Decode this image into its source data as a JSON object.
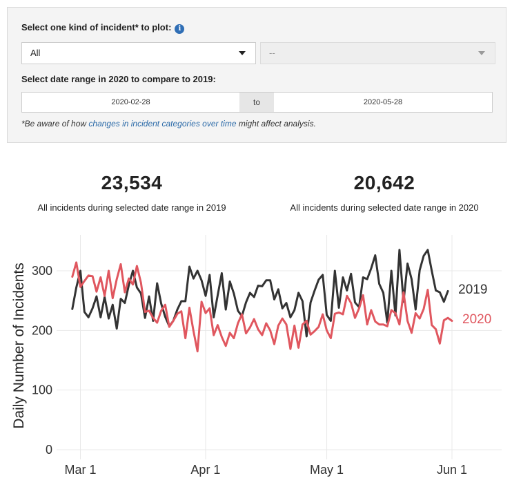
{
  "controls": {
    "incident_label": "Select one kind of incident* to plot:",
    "info_glyph": "i",
    "incident_selected": "All",
    "subcategory_placeholder": "--",
    "date_label": "Select date range in 2020 to compare to 2019:",
    "date_start": "2020-02-28",
    "date_sep": "to",
    "date_end": "2020-05-28",
    "note_pre": "*Be aware of how ",
    "note_link": "changes in incident categories over time",
    "note_post": " might affect analysis."
  },
  "stats": [
    {
      "value": "23,534",
      "caption": "All incidents during selected date range in 2019"
    },
    {
      "value": "20,642",
      "caption": "All incidents during selected date range in 2020"
    }
  ],
  "chart_data": {
    "type": "line",
    "ylabel": "Daily Number of Incidents",
    "xlabel": "",
    "ylim": [
      0,
      350
    ],
    "yticks": [
      0,
      100,
      200,
      300
    ],
    "xticks": [
      {
        "label": "Mar 1",
        "day": 0
      },
      {
        "label": "Apr 1",
        "day": 31
      },
      {
        "label": "May 1",
        "day": 61
      },
      {
        "label": "Jun 1",
        "day": 92
      }
    ],
    "xlim_days": [
      -4,
      104
    ],
    "x_start": "2020-02-28",
    "grid": true,
    "series": [
      {
        "name": "2019",
        "color": "#333333",
        "values": [
          236,
          272,
          300,
          231,
          222,
          237,
          257,
          222,
          256,
          220,
          243,
          203,
          253,
          246,
          276,
          300,
          272,
          262,
          221,
          257,
          216,
          279,
          245,
          223,
          207,
          216,
          235,
          249,
          249,
          307,
          287,
          300,
          284,
          258,
          293,
          222,
          259,
          296,
          235,
          282,
          262,
          233,
          224,
          247,
          263,
          256,
          275,
          274,
          284,
          284,
          252,
          269,
          237,
          246,
          222,
          234,
          263,
          249,
          190,
          247,
          267,
          285,
          293,
          226,
          216,
          300,
          238,
          289,
          267,
          295,
          247,
          239,
          289,
          286,
          304,
          326,
          278,
          263,
          213,
          300,
          225,
          335,
          248,
          312,
          286,
          235,
          301,
          325,
          335,
          300,
          267,
          264,
          248,
          266
        ]
      },
      {
        "name": "2020",
        "color": "#e0575f",
        "values": [
          290,
          314,
          273,
          283,
          292,
          291,
          265,
          289,
          258,
          300,
          254,
          286,
          311,
          264,
          287,
          277,
          308,
          280,
          231,
          233,
          221,
          213,
          233,
          243,
          206,
          216,
          228,
          232,
          187,
          238,
          199,
          165,
          248,
          229,
          237,
          192,
          209,
          189,
          174,
          196,
          187,
          212,
          227,
          195,
          205,
          219,
          202,
          192,
          212,
          200,
          177,
          208,
          220,
          210,
          169,
          208,
          171,
          210,
          216,
          193,
          199,
          206,
          227,
          200,
          187,
          228,
          230,
          227,
          258,
          246,
          221,
          237,
          259,
          210,
          234,
          215,
          210,
          210,
          207,
          234,
          229,
          210,
          264,
          216,
          196,
          229,
          220,
          236,
          268,
          209,
          202,
          178,
          217,
          221,
          216
        ]
      }
    ]
  }
}
